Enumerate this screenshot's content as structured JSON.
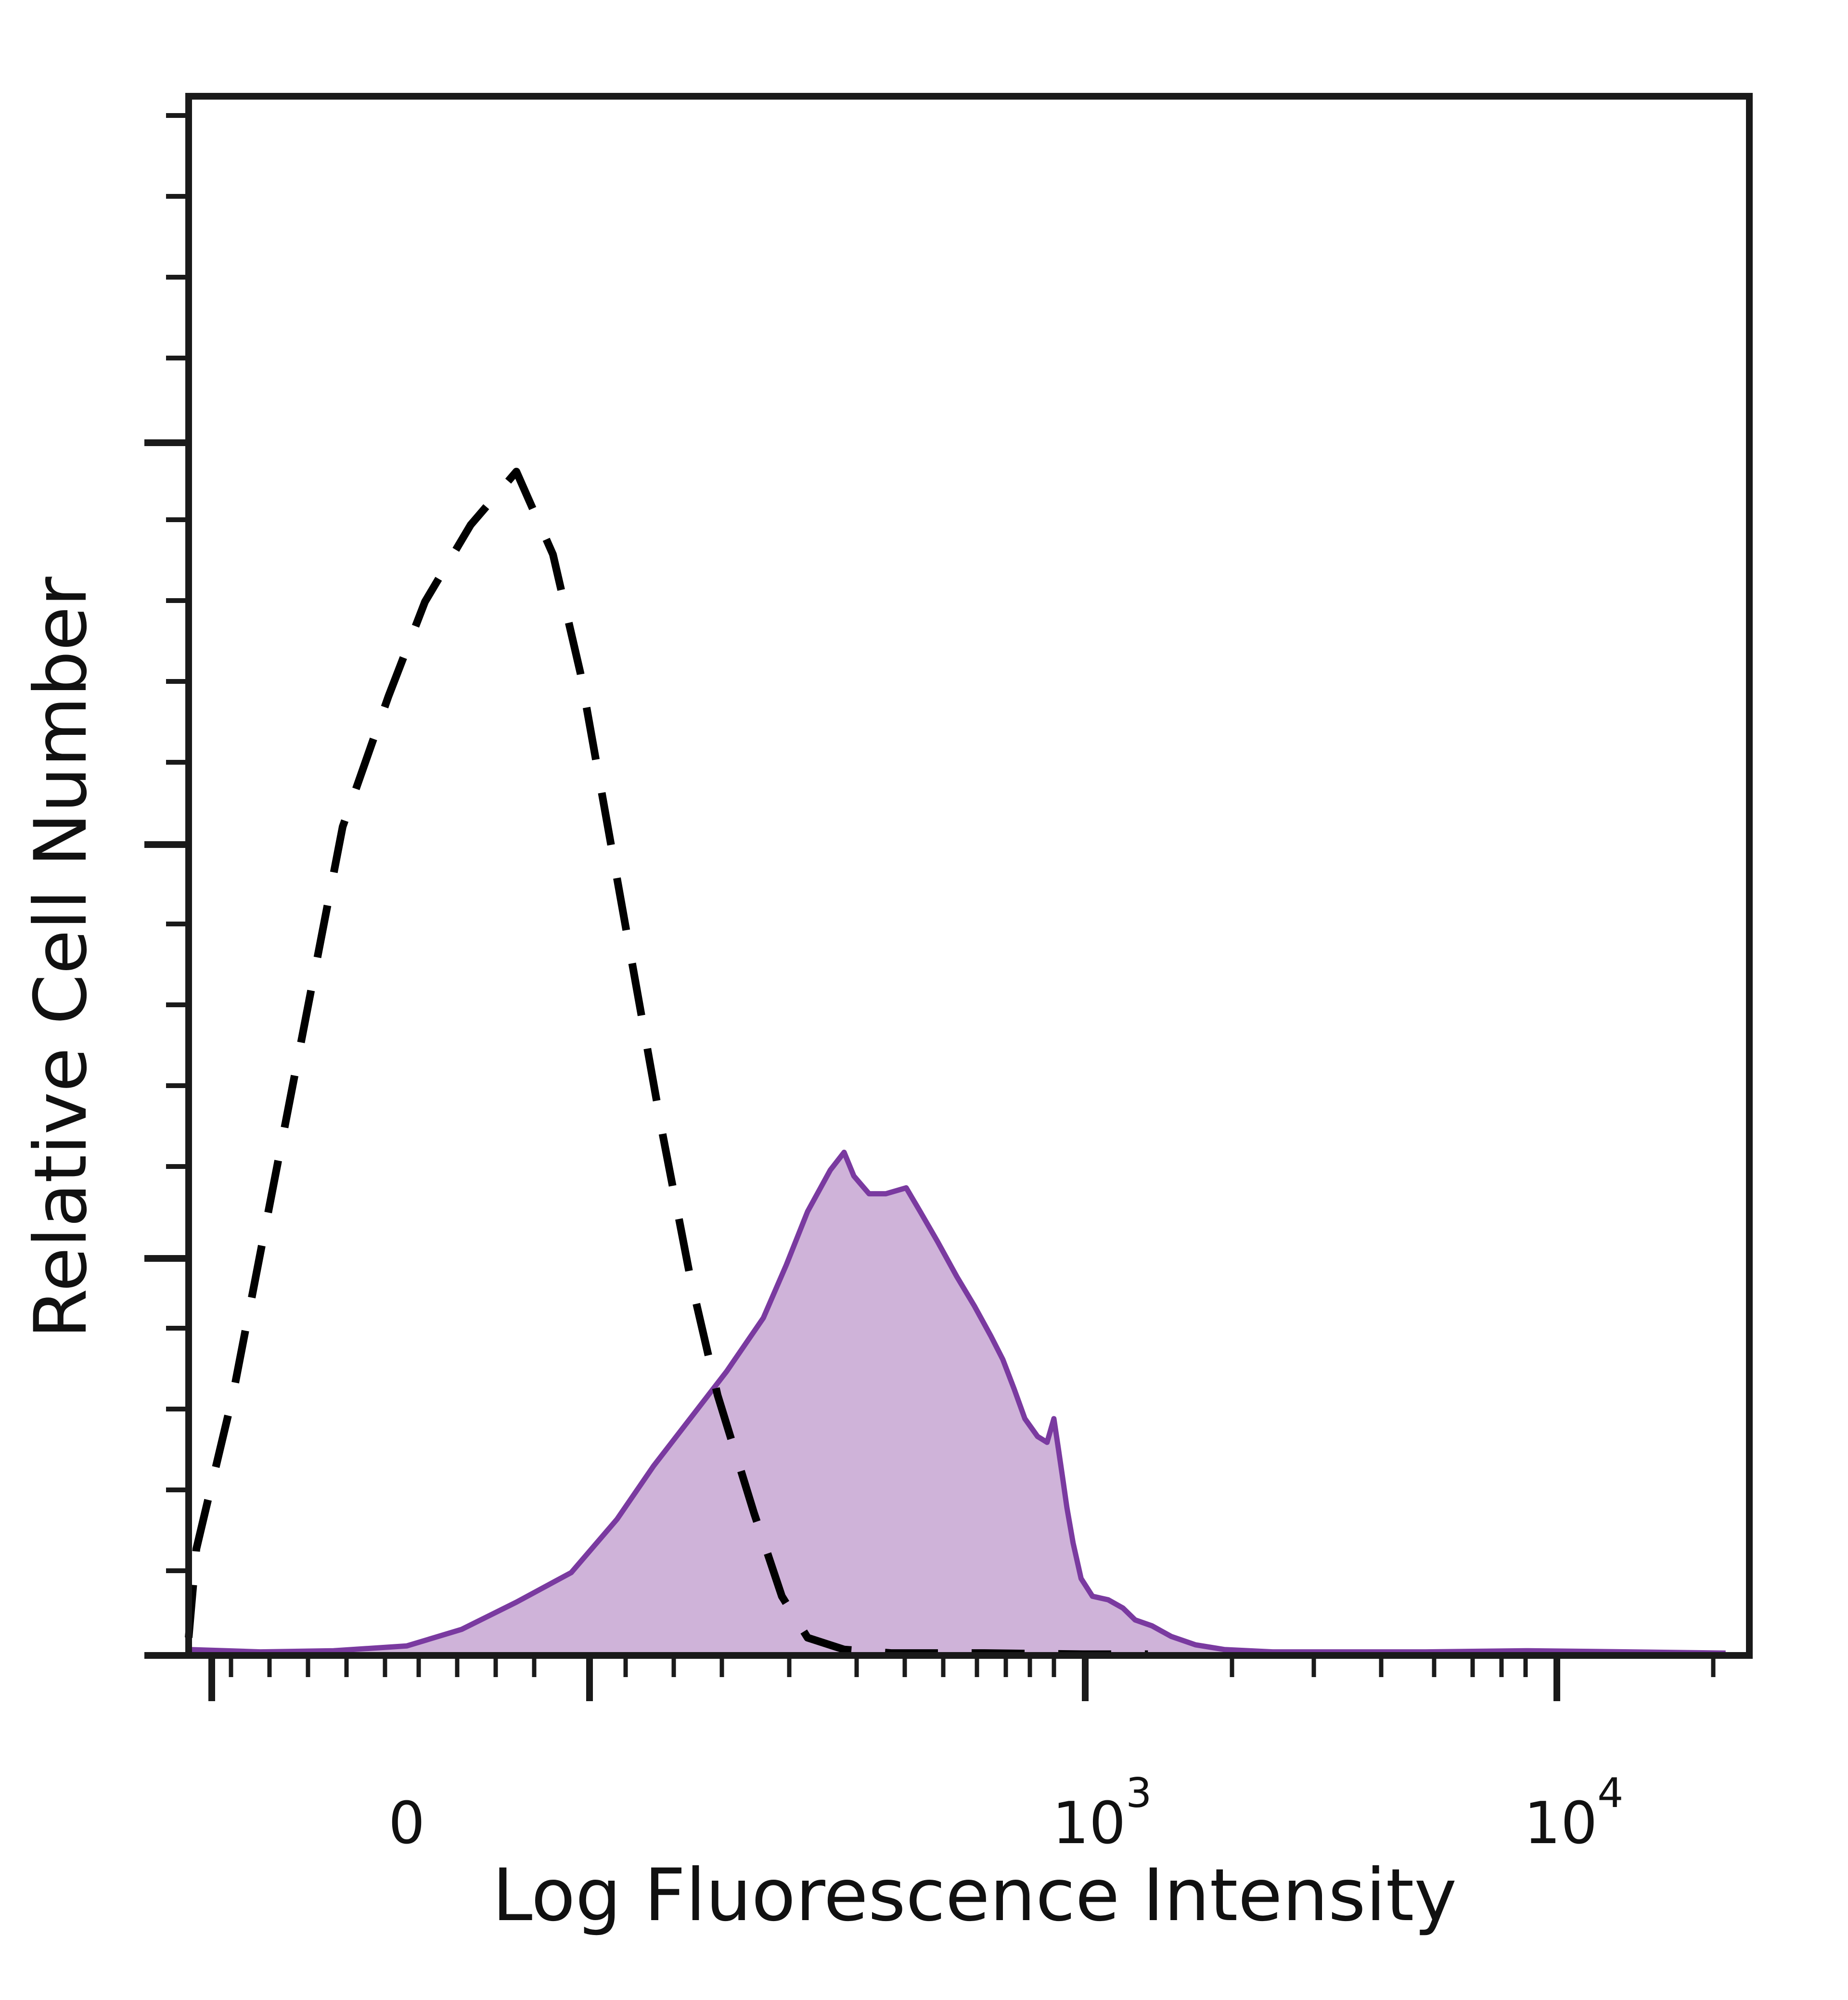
{
  "chart_data": {
    "type": "area",
    "title": "",
    "xlabel": "Log Fluorescence Intensity",
    "ylabel": "Relative Cell Number",
    "x_scale": "biexponential",
    "x_ticks": [
      {
        "label": "0",
        "exp": null
      },
      {
        "label": "10",
        "exp": "3"
      },
      {
        "label": "10",
        "exp": "4"
      }
    ],
    "y_tick_labels": "none",
    "ylim": [
      0,
      100
    ],
    "grid": false,
    "legend": "none",
    "series": [
      {
        "style": "filled",
        "line_color": "#7a3aa0",
        "fill_color": "#cfb3d9",
        "points": [
          [
            -170,
            0.3
          ],
          [
            -130,
            0.5
          ],
          [
            -80,
            0.3
          ],
          [
            -40,
            0.4
          ],
          [
            0,
            0.8
          ],
          [
            30,
            2.2
          ],
          [
            60,
            4.5
          ],
          [
            90,
            7.0
          ],
          [
            115,
            11.5
          ],
          [
            135,
            16.0
          ],
          [
            155,
            20.0
          ],
          [
            175,
            24.0
          ],
          [
            195,
            28.5
          ],
          [
            215,
            33.0
          ],
          [
            240,
            37.5
          ],
          [
            270,
            41.0
          ],
          [
            290,
            42.5
          ],
          [
            305,
            40.5
          ],
          [
            330,
            39.0
          ],
          [
            360,
            39.0
          ],
          [
            400,
            39.5
          ],
          [
            430,
            37.5
          ],
          [
            470,
            35.0
          ],
          [
            520,
            32.0
          ],
          [
            570,
            29.5
          ],
          [
            620,
            27.0
          ],
          [
            660,
            25.0
          ],
          [
            700,
            22.5
          ],
          [
            740,
            20.0
          ],
          [
            790,
            18.5
          ],
          [
            830,
            18.0
          ],
          [
            860,
            20.0
          ],
          [
            880,
            17.5
          ],
          [
            900,
            15.0
          ],
          [
            920,
            12.5
          ],
          [
            950,
            9.5
          ],
          [
            990,
            6.5
          ],
          [
            1050,
            5.0
          ],
          [
            1140,
            4.7
          ],
          [
            1230,
            4.0
          ],
          [
            1310,
            3.0
          ],
          [
            1430,
            2.5
          ],
          [
            1580,
            1.6
          ],
          [
            1780,
            0.9
          ],
          [
            2050,
            0.5
          ],
          [
            2600,
            0.3
          ],
          [
            3600,
            0.3
          ],
          [
            5500,
            0.3
          ],
          [
            9000,
            0.4
          ],
          [
            15000,
            0.3
          ],
          [
            24000,
            0.2
          ]
        ]
      },
      {
        "style": "dashed",
        "line_color": "#000000",
        "points": [
          [
            -135,
            1.5
          ],
          [
            -115,
            9.0
          ],
          [
            -95,
            22.0
          ],
          [
            -75,
            38.0
          ],
          [
            -55,
            54.0
          ],
          [
            -35,
            70.0
          ],
          [
            -10,
            81.0
          ],
          [
            10,
            89.0
          ],
          [
            35,
            95.5
          ],
          [
            60,
            100.0
          ],
          [
            80,
            93.0
          ],
          [
            95,
            83.0
          ],
          [
            110,
            70.0
          ],
          [
            125,
            57.0
          ],
          [
            140,
            44.0
          ],
          [
            155,
            32.0
          ],
          [
            170,
            22.0
          ],
          [
            190,
            12.0
          ],
          [
            210,
            5.0
          ],
          [
            240,
            1.5
          ],
          [
            290,
            0.5
          ],
          [
            370,
            0.2
          ],
          [
            600,
            0.2
          ],
          [
            1000,
            0.1
          ],
          [
            1400,
            0.1
          ]
        ]
      }
    ]
  }
}
